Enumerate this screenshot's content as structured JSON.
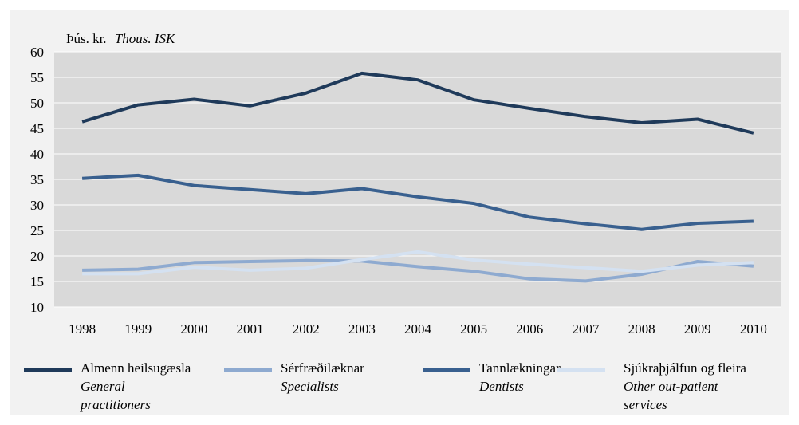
{
  "chart_data": {
    "type": "line",
    "ylabel": "Þús. kr.",
    "ylabel_en": "Thous. ISK",
    "ylim": [
      10,
      60
    ],
    "yticks": [
      10,
      15,
      20,
      25,
      30,
      35,
      40,
      45,
      50,
      55,
      60
    ],
    "grid": true,
    "legend_position": "bottom",
    "x": [
      "1998",
      "1999",
      "2000",
      "2001",
      "2002",
      "2003",
      "2004",
      "2005",
      "2006",
      "2007",
      "2008",
      "2009",
      "2010"
    ],
    "series": [
      {
        "name": "Almenn heilsugæsla",
        "name_en": "General practitioners",
        "color": "#1f3a5a",
        "values": [
          46.3,
          49.6,
          50.7,
          49.4,
          51.9,
          55.8,
          54.5,
          50.6,
          48.9,
          47.3,
          46.1,
          46.8,
          44.1
        ]
      },
      {
        "name": "Sérfræðilæknar",
        "name_en": "Specialists",
        "color": "#8eaad0",
        "values": [
          17.2,
          17.4,
          18.7,
          18.9,
          19.1,
          19.0,
          17.9,
          17.0,
          15.5,
          15.1,
          16.4,
          18.9,
          18.0
        ]
      },
      {
        "name": "Tannlækningar",
        "name_en": "Dentists",
        "color": "#39608f",
        "values": [
          35.2,
          35.8,
          33.8,
          33.0,
          32.2,
          33.2,
          31.6,
          30.3,
          27.6,
          26.3,
          25.2,
          26.4,
          26.8
        ]
      },
      {
        "name": "Sjúkraþjálfun og fleira",
        "name_en": "Other out-patient services",
        "color": "#d4e1f1",
        "values": [
          16.5,
          16.5,
          17.8,
          17.2,
          17.6,
          19.3,
          20.8,
          19.2,
          18.4,
          17.7,
          17.0,
          18.2,
          18.7
        ]
      }
    ]
  }
}
